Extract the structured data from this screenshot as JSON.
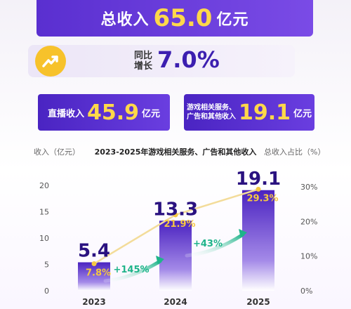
{
  "summary": {
    "total_label": "总收入",
    "total_value": "65.0",
    "total_unit": "亿元",
    "yoy_label_line1": "同比",
    "yoy_label_line2": "增长",
    "yoy_value": "7.0%"
  },
  "cards": {
    "live_label": "直播收入",
    "live_value": "45.9",
    "live_unit": "亿元",
    "ads_label_line1": "游戏相关服务、",
    "ads_label_line2": "广告和其他收入",
    "ads_value": "19.1",
    "ads_unit": "亿元"
  },
  "chart_data": {
    "type": "bar",
    "title": "2023-2025年游戏相关服务、广告和其他收入",
    "ylabel": "收入（亿元）",
    "y2label": "总收入占比（%）",
    "categories": [
      "2023",
      "2024",
      "2025"
    ],
    "ylim": [
      0,
      20
    ],
    "y2lim": [
      0,
      30
    ],
    "y_ticks": [
      "0",
      "5",
      "10",
      "15",
      "20"
    ],
    "y2_ticks": [
      "0%",
      "10%",
      "20%",
      "30%"
    ],
    "series": [
      {
        "values": [
          5.4,
          13.3,
          19.1
        ],
        "labels": [
          "5.4",
          "13.3",
          "19.1"
        ]
      },
      {
        "values": [
          7.8,
          21.9,
          29.3
        ],
        "labels": [
          "7.8%",
          "21.9%",
          "29.3%"
        ]
      }
    ],
    "growth_annotations": [
      "+145%",
      "+43%"
    ],
    "colors": {
      "bar_top": "#4a22c0",
      "bar_bottom": "#ffffff",
      "line": "#f5c842",
      "growth": "#1fb48a",
      "value": "#2a1280"
    }
  }
}
